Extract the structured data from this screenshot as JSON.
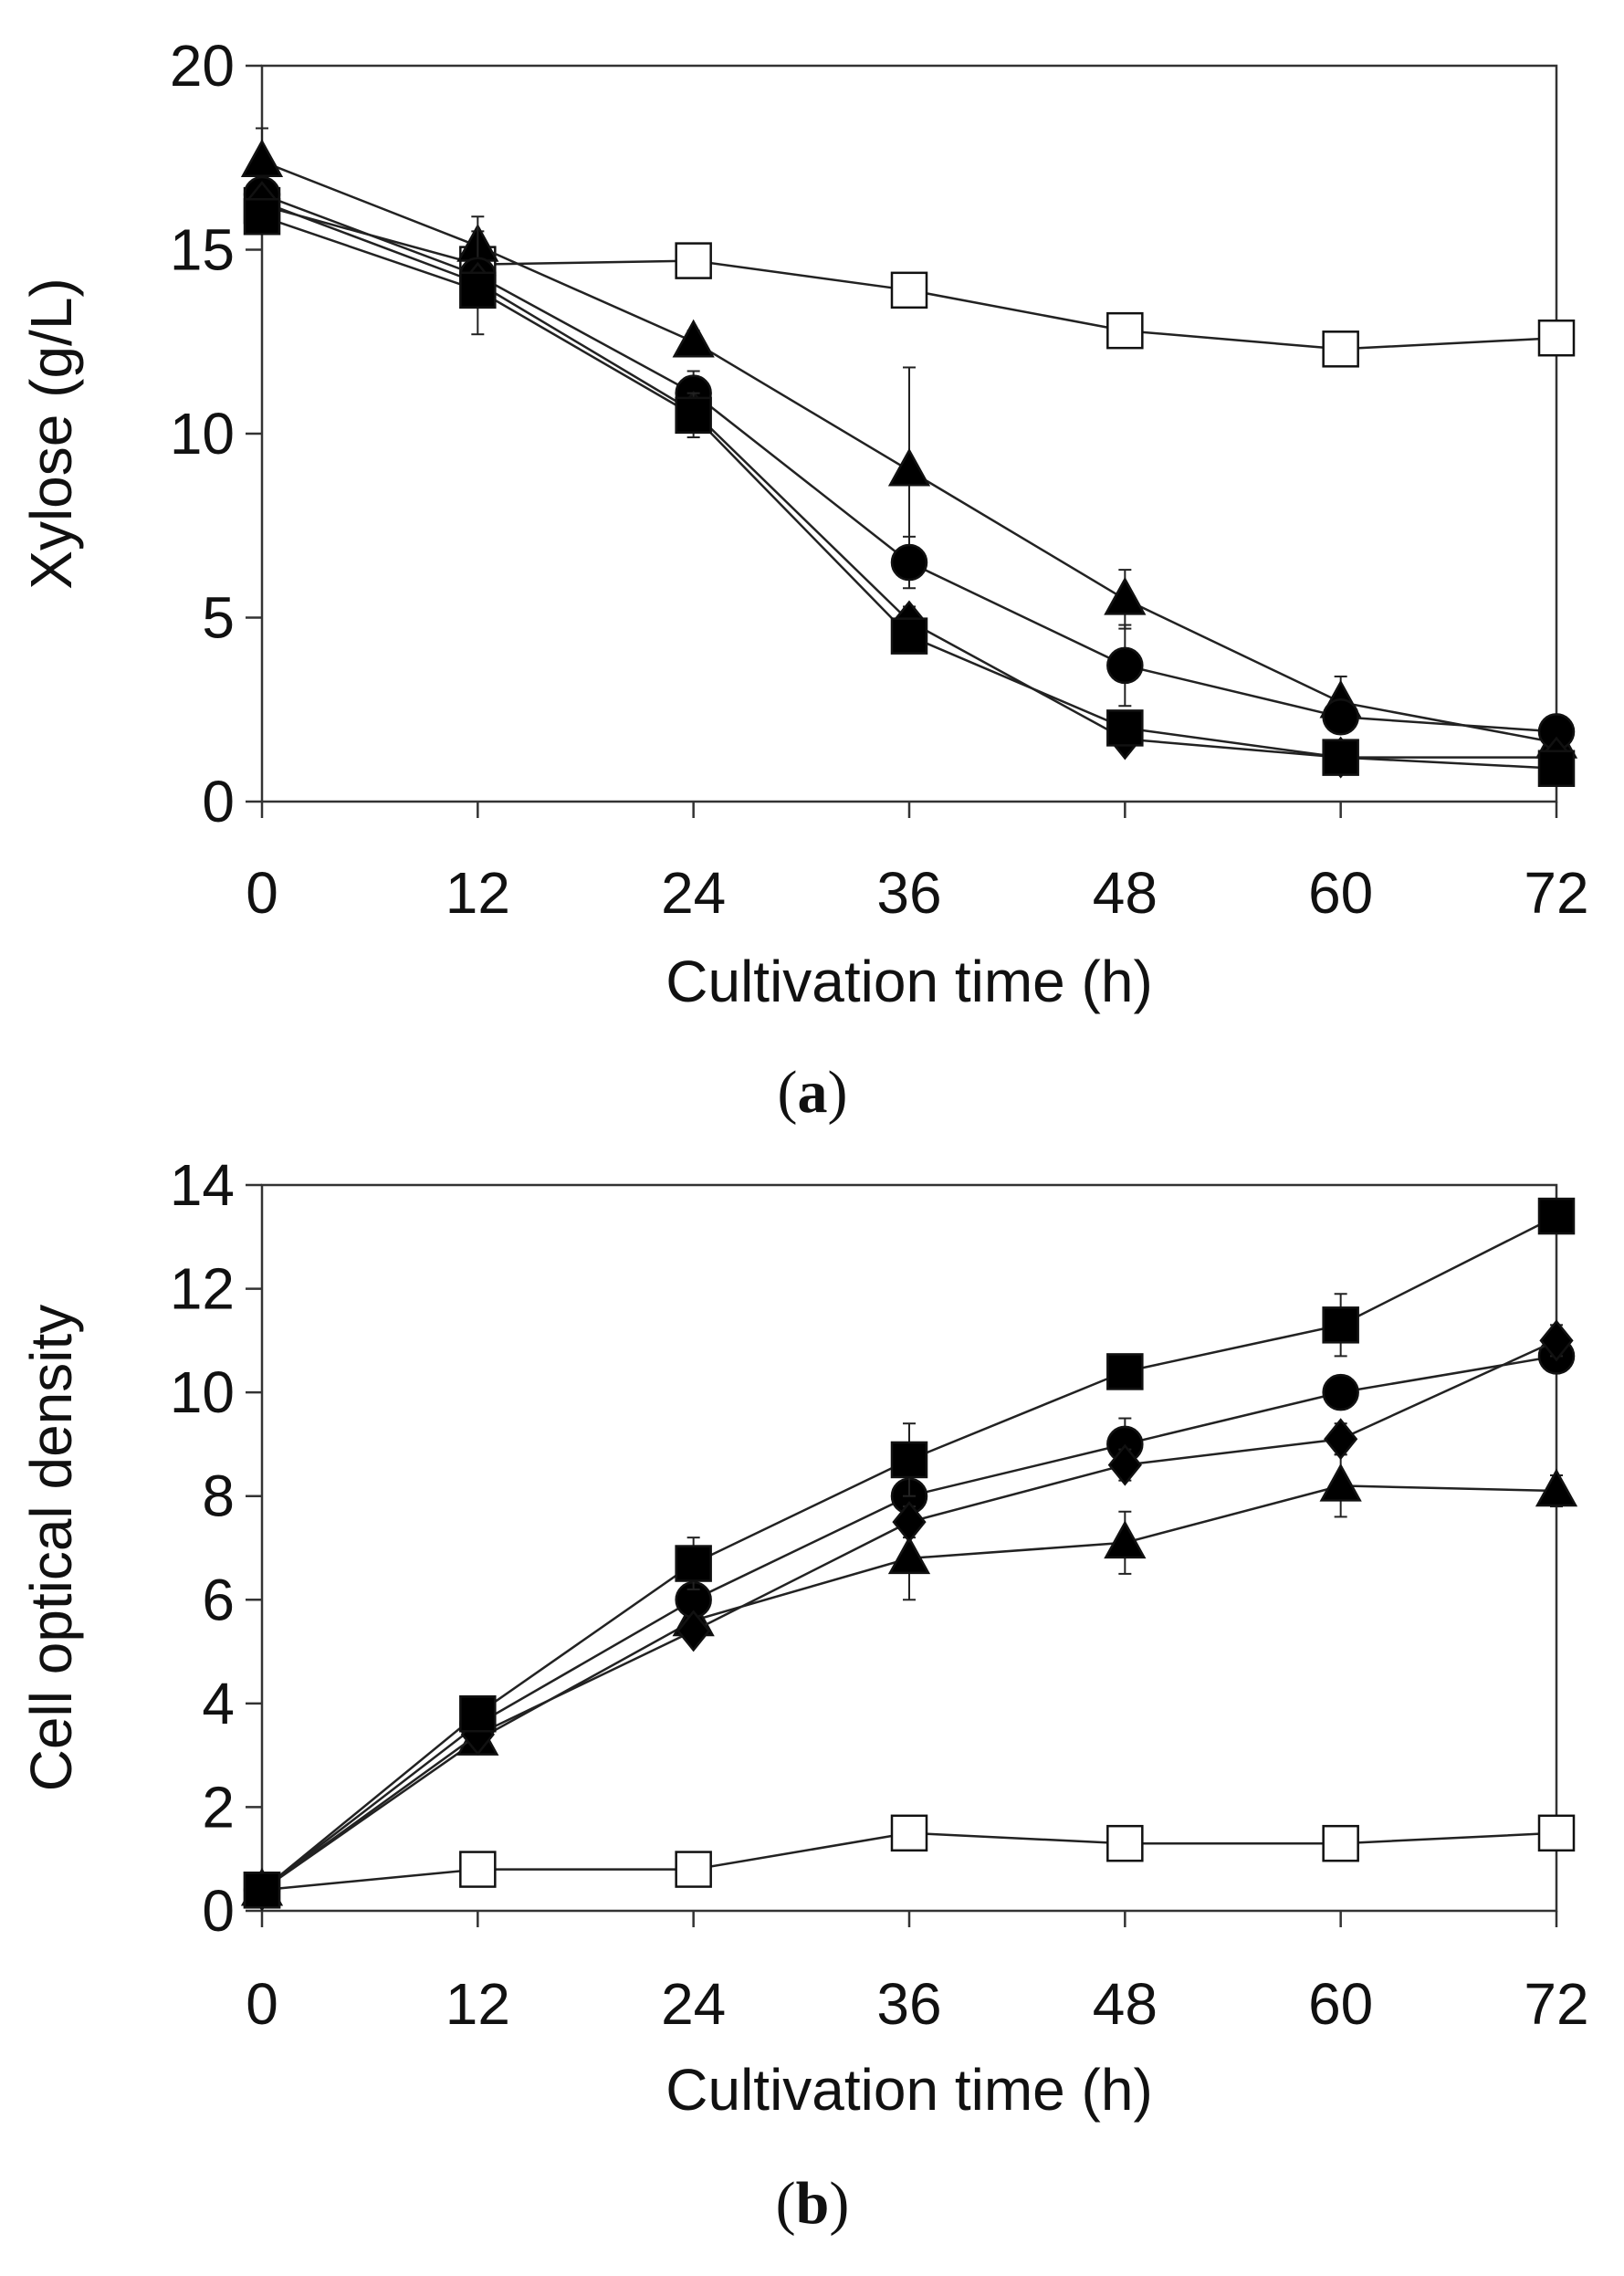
{
  "chart_data": [
    {
      "type": "line",
      "panel": "a",
      "xlabel": "Cultivation time (h)",
      "ylabel": "Xylose (g/L)",
      "xlim": [
        0,
        72
      ],
      "ylim": [
        0,
        20
      ],
      "xticks": [
        0,
        12,
        24,
        36,
        48,
        60,
        72
      ],
      "yticks": [
        0,
        5,
        10,
        15,
        20
      ],
      "grid": false,
      "caption_letter": "a",
      "caption_open": "(",
      "caption_close": ")",
      "series": [
        {
          "name": "open-square",
          "marker": "square",
          "fill": "#ffffff",
          "x": [
            0,
            12,
            24,
            36,
            48,
            60,
            72
          ],
          "y": [
            16.2,
            14.6,
            14.7,
            13.9,
            12.8,
            12.3,
            12.6
          ],
          "err": [
            0.2,
            0.2,
            0.2,
            0.2,
            0.2,
            0.2,
            0.2
          ]
        },
        {
          "name": "filled-triangle",
          "marker": "triangle",
          "fill": "#000000",
          "x": [
            0,
            12,
            24,
            36,
            48,
            60,
            72
          ],
          "y": [
            17.4,
            15.1,
            12.5,
            9.0,
            5.5,
            2.7,
            1.6
          ],
          "err": [
            0.9,
            0.4,
            0.3,
            2.8,
            0.8,
            0.7,
            0.3
          ]
        },
        {
          "name": "filled-circle",
          "marker": "circle",
          "fill": "#000000",
          "x": [
            0,
            12,
            24,
            36,
            48,
            60,
            72
          ],
          "y": [
            16.5,
            14.3,
            11.1,
            6.5,
            3.7,
            2.3,
            1.9
          ],
          "err": [
            0.4,
            1.6,
            0.6,
            0.7,
            1.1,
            0.4,
            0.3
          ]
        },
        {
          "name": "filled-diamond",
          "marker": "diamond",
          "fill": "#000000",
          "x": [
            0,
            12,
            24,
            36,
            48,
            60,
            72
          ],
          "y": [
            16.3,
            14.1,
            10.6,
            4.9,
            1.7,
            1.2,
            1.2
          ],
          "err": [
            0.3,
            0.3,
            0.3,
            0.4,
            0.3,
            0.2,
            0.2
          ]
        },
        {
          "name": "filled-square",
          "marker": "square",
          "fill": "#000000",
          "x": [
            0,
            12,
            24,
            36,
            48,
            60,
            72
          ],
          "y": [
            15.9,
            13.9,
            10.5,
            4.5,
            2.0,
            1.2,
            0.9
          ],
          "err": [
            0.3,
            0.3,
            0.6,
            0.4,
            0.3,
            0.2,
            0.2
          ]
        }
      ]
    },
    {
      "type": "line",
      "panel": "b",
      "xlabel": "Cultivation time (h)",
      "ylabel": "Cell optical density",
      "xlim": [
        0,
        72
      ],
      "ylim": [
        0,
        14
      ],
      "xticks": [
        0,
        12,
        24,
        36,
        48,
        60,
        72
      ],
      "yticks": [
        0,
        2,
        4,
        6,
        8,
        10,
        12,
        14
      ],
      "grid": false,
      "caption_letter": "b",
      "caption_open": "(",
      "caption_close": ")",
      "series": [
        {
          "name": "open-square",
          "marker": "square",
          "fill": "#ffffff",
          "x": [
            0,
            12,
            24,
            36,
            48,
            60,
            72
          ],
          "y": [
            0.4,
            0.8,
            0.8,
            1.5,
            1.3,
            1.3,
            1.5
          ],
          "err": [
            0.1,
            0.1,
            0.1,
            0.1,
            0.1,
            0.1,
            0.1
          ]
        },
        {
          "name": "filled-triangle",
          "marker": "triangle",
          "fill": "#000000",
          "x": [
            0,
            12,
            24,
            36,
            48,
            60,
            72
          ],
          "y": [
            0.4,
            3.3,
            5.6,
            6.8,
            7.1,
            8.2,
            8.1
          ],
          "err": [
            0.1,
            0.2,
            0.2,
            0.8,
            0.6,
            0.6,
            0.3
          ]
        },
        {
          "name": "filled-circle",
          "marker": "circle",
          "fill": "#000000",
          "x": [
            0,
            12,
            24,
            36,
            48,
            60,
            72
          ],
          "y": [
            0.4,
            3.6,
            6.0,
            8.0,
            9.0,
            10.0,
            10.7
          ],
          "err": [
            0.1,
            0.2,
            0.2,
            0.3,
            0.5,
            0.3,
            0.3
          ]
        },
        {
          "name": "filled-diamond",
          "marker": "diamond",
          "fill": "#000000",
          "x": [
            0,
            12,
            24,
            36,
            48,
            60,
            72
          ],
          "y": [
            0.4,
            3.4,
            5.4,
            7.5,
            8.6,
            9.1,
            11.0
          ],
          "err": [
            0.1,
            0.2,
            0.2,
            0.3,
            0.3,
            0.3,
            0.3
          ]
        },
        {
          "name": "filled-square",
          "marker": "square",
          "fill": "#000000",
          "x": [
            0,
            12,
            24,
            36,
            48,
            60,
            72
          ],
          "y": [
            0.4,
            3.8,
            6.7,
            8.7,
            10.4,
            11.3,
            13.4
          ],
          "err": [
            0.1,
            0.2,
            0.5,
            0.7,
            0.3,
            0.6,
            0.3
          ]
        }
      ]
    }
  ]
}
